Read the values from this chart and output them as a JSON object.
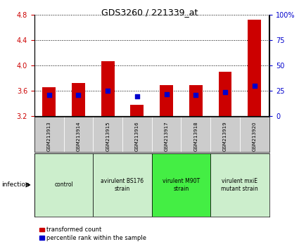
{
  "title": "GDS3260 / 221339_at",
  "samples": [
    "GSM213913",
    "GSM213914",
    "GSM213915",
    "GSM213916",
    "GSM213917",
    "GSM213918",
    "GSM213919",
    "GSM213920"
  ],
  "transformed_counts": [
    3.65,
    3.72,
    4.07,
    3.37,
    3.69,
    3.69,
    3.9,
    4.73
  ],
  "percentile_ranks": [
    20.5,
    21.0,
    24.5,
    19.5,
    21.5,
    21.0,
    23.5,
    30.0
  ],
  "ylim_left": [
    3.2,
    4.8
  ],
  "ylim_right": [
    0,
    100
  ],
  "yticks_left": [
    3.2,
    3.6,
    4.0,
    4.4,
    4.8
  ],
  "yticks_right": [
    0,
    25,
    50,
    75,
    100
  ],
  "bar_color": "#cc0000",
  "percentile_color": "#0000cc",
  "bar_bottom": 3.2,
  "group_spans": [
    [
      0,
      1,
      "control",
      "#cceecc"
    ],
    [
      2,
      3,
      "avirulent BS176\nstrain",
      "#cceecc"
    ],
    [
      4,
      5,
      "virulent M90T\nstrain",
      "#44ee44"
    ],
    [
      6,
      7,
      "virulent mxiE\nmutant strain",
      "#cceecc"
    ]
  ],
  "legend_labels": [
    "transformed count",
    "percentile rank within the sample"
  ],
  "legend_colors": [
    "#cc0000",
    "#0000cc"
  ],
  "infection_label": "infection",
  "tick_label_color_left": "#cc0000",
  "tick_label_color_right": "#0000cc",
  "bg_sample_row": "#cccccc",
  "title_fontsize": 9,
  "tick_fontsize": 7,
  "sample_fontsize": 5,
  "group_fontsize": 5.5,
  "legend_fontsize": 6
}
